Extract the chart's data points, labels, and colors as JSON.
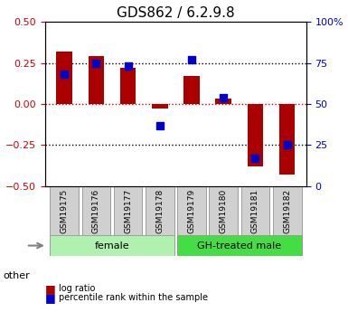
{
  "title": "GDS862 / 6.2.9.8",
  "samples": [
    "GSM19175",
    "GSM19176",
    "GSM19177",
    "GSM19178",
    "GSM19179",
    "GSM19180",
    "GSM19181",
    "GSM19182"
  ],
  "log_ratio": [
    0.32,
    0.29,
    0.22,
    -0.03,
    0.17,
    0.03,
    -0.38,
    -0.43
  ],
  "percentile_rank": [
    0.18,
    0.25,
    0.23,
    -0.13,
    0.27,
    0.04,
    -0.33,
    -0.25
  ],
  "groups": [
    {
      "label": "female",
      "start": 0,
      "end": 3,
      "color": "#b0f0b0"
    },
    {
      "label": "GH-treated male",
      "start": 4,
      "end": 7,
      "color": "#44dd44"
    }
  ],
  "ylim": [
    -0.5,
    0.5
  ],
  "yticks": [
    -0.5,
    -0.25,
    0,
    0.25,
    0.5
  ],
  "right_yticks": [
    0,
    25,
    50,
    75,
    100
  ],
  "right_ylim": [
    0,
    100
  ],
  "bar_color": "#aa0000",
  "dot_color": "#0000cc",
  "zero_line_color": "#cc0000",
  "dotted_line_color": "#000000",
  "bg_color": "#ffffff",
  "label_color_left": "#cc0000",
  "label_color_right": "#0000cc",
  "bar_width": 0.5,
  "dot_size": 40,
  "legend_log_ratio": "log ratio",
  "legend_percentile": "percentile rank within the sample",
  "other_label": "other"
}
